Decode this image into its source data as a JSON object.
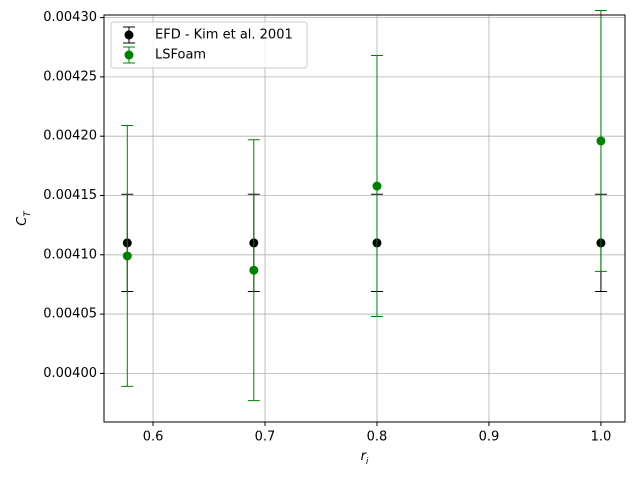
{
  "chart_data": {
    "type": "errorbar",
    "xlabel": "r_i",
    "ylabel": "C_T",
    "series": [
      {
        "name": "EFD - Kim et al. 2001",
        "color": "#000000",
        "x": [
          0.577,
          0.69,
          0.8,
          1.0
        ],
        "values": [
          0.00411,
          0.00411,
          0.00411,
          0.00411
        ],
        "errors": [
          4.1e-05,
          4.1e-05,
          4.1e-05,
          4.1e-05
        ]
      },
      {
        "name": "LSFoam",
        "color": "#008000",
        "x": [
          0.577,
          0.69,
          0.8,
          1.0
        ],
        "values": [
          0.004099,
          0.004087,
          0.004158,
          0.004196
        ],
        "errors": [
          0.00011,
          0.00011,
          0.00011,
          0.00011
        ]
      }
    ],
    "xlim": [
      0.5562,
      1.0215
    ],
    "xticks": [
      0.6,
      0.7,
      0.8,
      0.9,
      {
        "value": 1,
        "label": "1.0"
      }
    ],
    "ylim": [
      0.003959,
      0.0043022
    ],
    "yticks": [
      {
        "value": 0.004,
        "label": "0.00400"
      },
      {
        "value": 0.00405,
        "label": "0.00405"
      },
      {
        "value": 0.0041,
        "label": "0.00410"
      },
      {
        "value": 0.00415,
        "label": "0.00415"
      },
      {
        "value": 0.0042,
        "label": "0.00420"
      },
      {
        "value": 0.00425,
        "label": "0.00425"
      },
      {
        "value": 0.0043,
        "label": "0.00430"
      }
    ],
    "grid": true,
    "legend": "upper left"
  }
}
